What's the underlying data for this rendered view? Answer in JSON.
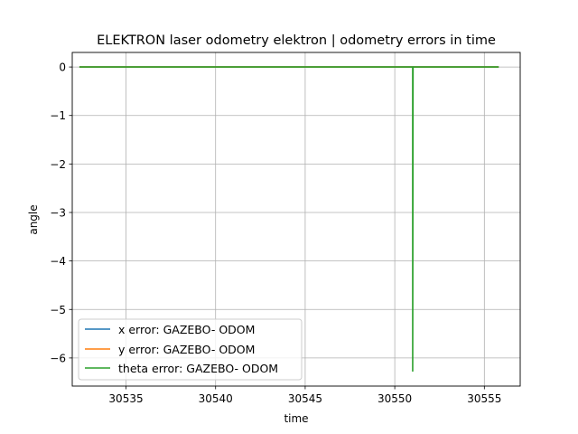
{
  "chart_data": {
    "type": "line",
    "title": "ELEKTRON laser odometry elektron | odometry errors in time",
    "xlabel": "time",
    "ylabel": "angle",
    "xlim": [
      30532.0,
      30557.0
    ],
    "ylim": [
      -6.58,
      0.3
    ],
    "xticks": [
      30535,
      30540,
      30545,
      30550,
      30555
    ],
    "yticks": [
      0,
      -1,
      -2,
      -3,
      -4,
      -5,
      -6
    ],
    "xtick_labels": [
      "30535",
      "30540",
      "30545",
      "30550",
      "30555"
    ],
    "ytick_labels": [
      "0",
      "−1",
      "−2",
      "−3",
      "−4",
      "−5",
      "−6"
    ],
    "grid": true,
    "legend_position": "lower-left",
    "series": [
      {
        "name": "x error: GAZEBO- ODOM",
        "color": "#1f77b4",
        "x": [
          30532.4,
          30535,
          30540,
          30545,
          30550,
          30551.0,
          30551.1,
          30555,
          30555.8
        ],
        "y": [
          0,
          0,
          0,
          0,
          0,
          0,
          0,
          0,
          0
        ]
      },
      {
        "name": "y error: GAZEBO- ODOM",
        "color": "#ff7f0e",
        "x": [
          30532.4,
          30535,
          30540,
          30545,
          30550,
          30551.0,
          30551.1,
          30555,
          30555.8
        ],
        "y": [
          0,
          0,
          0,
          0,
          0,
          0,
          0,
          0,
          0
        ]
      },
      {
        "name": "theta error: GAZEBO- ODOM",
        "color": "#2ca02c",
        "x": [
          30532.4,
          30535,
          30540,
          30545,
          30550,
          30551.0,
          30551.0,
          30551.02,
          30551.1,
          30555,
          30555.8
        ],
        "y": [
          0,
          0,
          0,
          0,
          0,
          0,
          -6.27,
          0,
          0,
          0,
          0
        ]
      }
    ]
  }
}
